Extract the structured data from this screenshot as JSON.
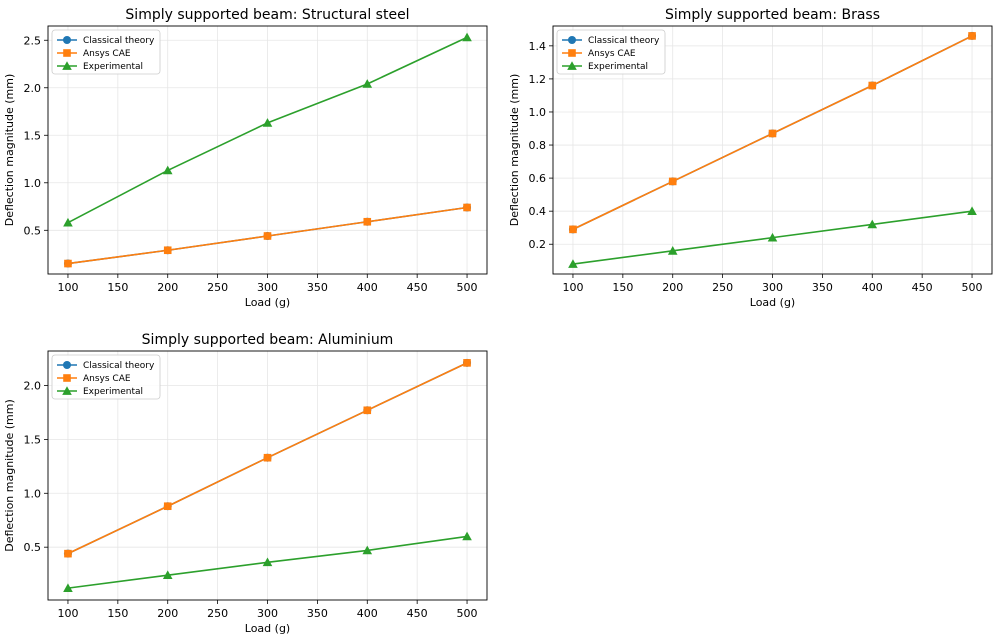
{
  "colors": {
    "classical": "#1f77b4",
    "ansys": "#ff7f0e",
    "experimental": "#2ca02c",
    "grid": "#e6e6e6",
    "axis": "#000000"
  },
  "chart_data": [
    {
      "type": "line",
      "title": "Simply supported beam: Structural steel",
      "xlabel": "Load (g)",
      "ylabel": "Deflection magnitude (mm)",
      "x": [
        100,
        200,
        300,
        400,
        500
      ],
      "xlim": [
        80,
        520
      ],
      "ylim": [
        0.04,
        2.65
      ],
      "xticks": [
        100,
        150,
        200,
        250,
        300,
        350,
        400,
        450,
        500
      ],
      "yticks": [
        0.5,
        1.0,
        1.5,
        2.0,
        2.5
      ],
      "ytick_labels": [
        "0.5",
        "1.0",
        "1.5",
        "2.0",
        "2.5"
      ],
      "grid": true,
      "legend": "top-left",
      "series": [
        {
          "name": "Classical theory",
          "marker": "circle",
          "values": [
            0.15,
            0.29,
            0.44,
            0.59,
            0.74
          ]
        },
        {
          "name": "Ansys CAE",
          "marker": "square",
          "values": [
            0.15,
            0.29,
            0.44,
            0.59,
            0.74
          ]
        },
        {
          "name": "Experimental",
          "marker": "triangle",
          "values": [
            0.58,
            1.13,
            1.63,
            2.04,
            2.53
          ]
        }
      ]
    },
    {
      "type": "line",
      "title": "Simply supported beam: Brass",
      "xlabel": "Load (g)",
      "ylabel": "Deflection magnitude (mm)",
      "x": [
        100,
        200,
        300,
        400,
        500
      ],
      "xlim": [
        80,
        520
      ],
      "ylim": [
        0.02,
        1.52
      ],
      "xticks": [
        100,
        150,
        200,
        250,
        300,
        350,
        400,
        450,
        500
      ],
      "yticks": [
        0.2,
        0.4,
        0.6,
        0.8,
        1.0,
        1.2,
        1.4
      ],
      "ytick_labels": [
        "0.2",
        "0.4",
        "0.6",
        "0.8",
        "1.0",
        "1.2",
        "1.4"
      ],
      "grid": true,
      "legend": "top-left",
      "series": [
        {
          "name": "Classical theory",
          "marker": "circle",
          "values": [
            0.29,
            0.58,
            0.87,
            1.16,
            1.46
          ]
        },
        {
          "name": "Ansys CAE",
          "marker": "square",
          "values": [
            0.29,
            0.58,
            0.87,
            1.16,
            1.46
          ]
        },
        {
          "name": "Experimental",
          "marker": "triangle",
          "values": [
            0.08,
            0.16,
            0.24,
            0.32,
            0.4
          ]
        }
      ]
    },
    {
      "type": "line",
      "title": "Simply supported beam: Aluminium",
      "xlabel": "Load (g)",
      "ylabel": "Deflection magnitude (mm)",
      "x": [
        100,
        200,
        300,
        400,
        500
      ],
      "xlim": [
        80,
        520
      ],
      "ylim": [
        0.01,
        2.32
      ],
      "xticks": [
        100,
        150,
        200,
        250,
        300,
        350,
        400,
        450,
        500
      ],
      "yticks": [
        0.5,
        1.0,
        1.5,
        2.0
      ],
      "ytick_labels": [
        "0.5",
        "1.0",
        "1.5",
        "2.0"
      ],
      "grid": true,
      "legend": "top-left",
      "series": [
        {
          "name": "Classical theory",
          "marker": "circle",
          "values": [
            0.44,
            0.88,
            1.33,
            1.77,
            2.21
          ]
        },
        {
          "name": "Ansys CAE",
          "marker": "square",
          "values": [
            0.44,
            0.88,
            1.33,
            1.77,
            2.21
          ]
        },
        {
          "name": "Experimental",
          "marker": "triangle",
          "values": [
            0.12,
            0.24,
            0.36,
            0.47,
            0.6
          ]
        }
      ]
    }
  ]
}
